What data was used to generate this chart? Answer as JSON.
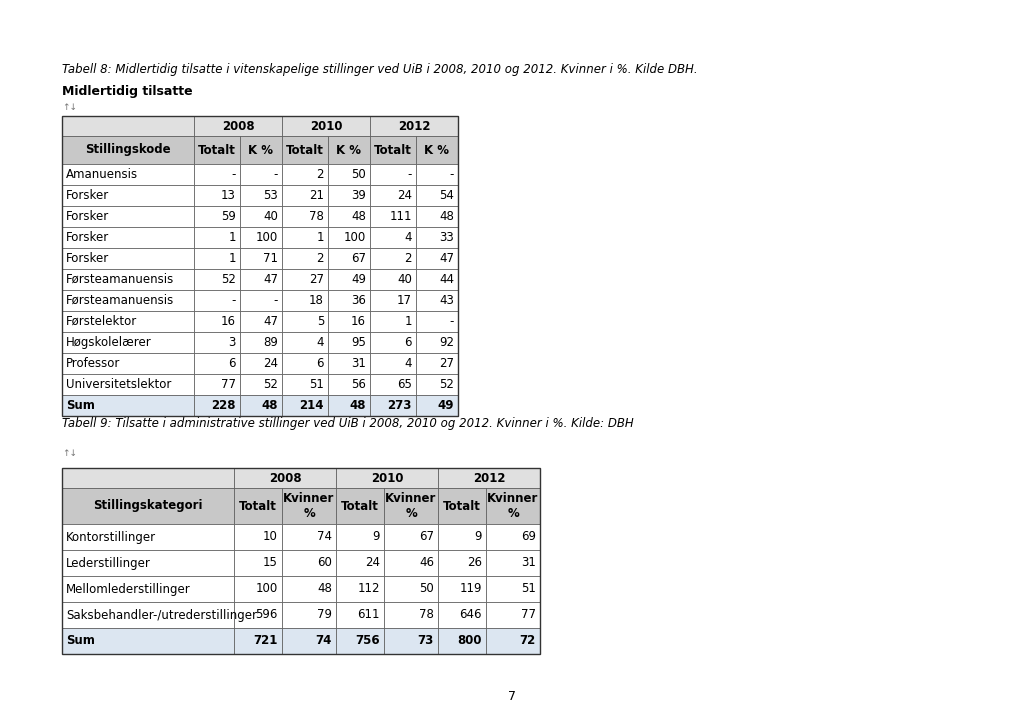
{
  "title1": "Tabell 8: Midlertidig tilsatte i vitenskapelige stillinger ved UiB i 2008, 2010 og 2012. Kvinner i %. Kilde DBH.",
  "title2": "Tabell 9: Tilsatte i administrative stillinger ved UiB i 2008, 2010 og 2012. Kvinner i %. Kilde: DBH",
  "table1_label": "Midlertidig tilsatte",
  "table1_header_bot": [
    "Stillingskode",
    "Totalt",
    "K %",
    "Totalt",
    "K %",
    "Totalt",
    "K %"
  ],
  "table1_rows": [
    [
      "Amanuensis",
      "-",
      "-",
      "2",
      "50",
      "-",
      "-"
    ],
    [
      "Forsker",
      "13",
      "53",
      "21",
      "39",
      "24",
      "54"
    ],
    [
      "Forsker",
      "59",
      "40",
      "78",
      "48",
      "111",
      "48"
    ],
    [
      "Forsker",
      "1",
      "100",
      "1",
      "100",
      "4",
      "33"
    ],
    [
      "Forsker",
      "1",
      "71",
      "2",
      "67",
      "2",
      "47"
    ],
    [
      "Førsteamanuensis",
      "52",
      "47",
      "27",
      "49",
      "40",
      "44"
    ],
    [
      "Førsteamanuensis",
      "-",
      "-",
      "18",
      "36",
      "17",
      "43"
    ],
    [
      "Førstelektor",
      "16",
      "47",
      "5",
      "16",
      "1",
      "-"
    ],
    [
      "Høgskolelærer",
      "3",
      "89",
      "4",
      "95",
      "6",
      "92"
    ],
    [
      "Professor",
      "6",
      "24",
      "6",
      "31",
      "4",
      "27"
    ],
    [
      "Universitetslektor",
      "77",
      "52",
      "51",
      "56",
      "65",
      "52"
    ],
    [
      "Sum",
      "228",
      "48",
      "214",
      "48",
      "273",
      "49"
    ]
  ],
  "table2_header_bot": [
    "Stillingskategori",
    "Totalt",
    "Kvinner\n%",
    "Totalt",
    "Kvinner\n%",
    "Totalt",
    "Kvinner\n%"
  ],
  "table2_rows": [
    [
      "Kontorstillinger",
      "10",
      "74",
      "9",
      "67",
      "9",
      "69"
    ],
    [
      "Lederstillinger",
      "15",
      "60",
      "24",
      "46",
      "26",
      "31"
    ],
    [
      "Mellomlederstillinger",
      "100",
      "48",
      "112",
      "50",
      "119",
      "51"
    ],
    [
      "Saksbehandler-/utrederstillinger",
      "596",
      "79",
      "611",
      "78",
      "646",
      "77"
    ],
    [
      "Sum",
      "721",
      "74",
      "756",
      "73",
      "800",
      "72"
    ]
  ],
  "page_number": "7",
  "bg_color": "#ffffff",
  "header_bg": "#c8c8c8",
  "header_year_bg": "#e0e0e0",
  "sum_bg": "#dce6f1",
  "border_color": "#555555"
}
